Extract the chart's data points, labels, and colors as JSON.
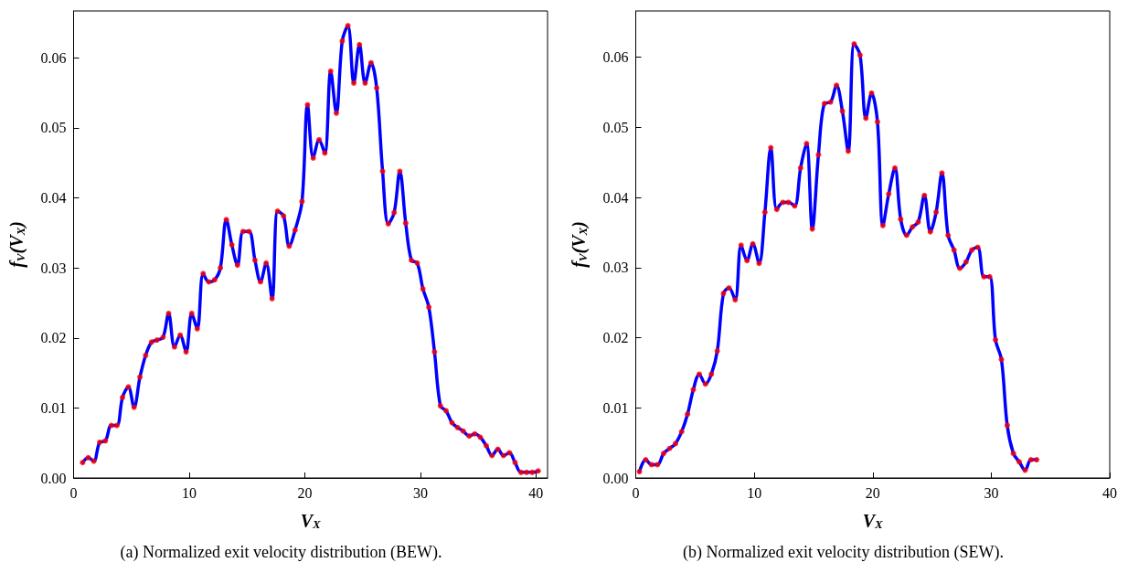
{
  "chart_data": [
    {
      "type": "line",
      "xlabel": "V$_{X}$",
      "ylabel": "f$_{V}$(V$_{X}$)",
      "annotations": [
        "(a) Normalized exit velocity distribution (BEW)."
      ],
      "xlim": [
        0,
        41
      ],
      "xticks": [
        0,
        10,
        20,
        30,
        40
      ],
      "ylim": [
        0,
        0.0667
      ],
      "yticks": [
        {
          "value": 0,
          "label": "0.00"
        },
        0.01,
        0.02,
        0.03,
        0.04,
        0.05,
        0.06
      ],
      "grid": false,
      "x": [
        0.78,
        1.27,
        1.75,
        2.26,
        2.75,
        3.26,
        3.75,
        4.23,
        4.74,
        5.23,
        5.74,
        6.23,
        6.74,
        7.22,
        7.74,
        8.22,
        8.73,
        9.22,
        9.73,
        10.22,
        10.7,
        11.21,
        11.7,
        12.21,
        12.7,
        13.21,
        13.69,
        14.18,
        14.66,
        15.18,
        15.69,
        16.17,
        16.66,
        17.17,
        17.65,
        18.17,
        18.65,
        19.16,
        19.76,
        20.24,
        20.73,
        21.24,
        21.73,
        22.24,
        22.73,
        23.24,
        23.73,
        24.24,
        24.73,
        25.22,
        25.73,
        26.22,
        26.73,
        27.22,
        27.73,
        28.22,
        28.73,
        29.22,
        29.73,
        30.22,
        30.73,
        31.22,
        31.73,
        32.22,
        32.73,
        33.22,
        33.7,
        34.22,
        34.7,
        35.19,
        35.7,
        36.19,
        36.7,
        37.19,
        37.7,
        38.19,
        38.7,
        39.19,
        39.68,
        40.19
      ],
      "series": [
        {
          "type": "line",
          "color": "#0000ff",
          "marker": "none",
          "values": [
            0.0022,
            0.0029,
            0.0024,
            0.0051,
            0.0053,
            0.0075,
            0.0075,
            0.0115,
            0.013,
            0.0101,
            0.0144,
            0.0175,
            0.0194,
            0.0197,
            0.0201,
            0.0235,
            0.0187,
            0.0204,
            0.018,
            0.0235,
            0.0213,
            0.0292,
            0.028,
            0.0283,
            0.03,
            0.0369,
            0.0333,
            0.0304,
            0.0352,
            0.0352,
            0.0311,
            0.028,
            0.0307,
            0.0256,
            0.0381,
            0.0374,
            0.0331,
            0.0354,
            0.0395,
            0.0533,
            0.0457,
            0.0483,
            0.0464,
            0.0581,
            0.0521,
            0.0624,
            0.0646,
            0.0564,
            0.0619,
            0.0564,
            0.0593,
            0.0557,
            0.0438,
            0.0363,
            0.0379,
            0.0438,
            0.0364,
            0.0311,
            0.0307,
            0.027,
            0.0244,
            0.018,
            0.0103,
            0.0096,
            0.0079,
            0.0072,
            0.0067,
            0.006,
            0.0063,
            0.0058,
            0.0046,
            0.0032,
            0.0041,
            0.0032,
            0.0036,
            0.0022,
            0.0008,
            0.0008,
            0.0008,
            0.001
          ]
        },
        {
          "type": "scatter",
          "color": "#ff0000",
          "marker": "circle",
          "values": [
            0.0022,
            0.0029,
            0.0024,
            0.0051,
            0.0053,
            0.0075,
            0.0075,
            0.0115,
            0.013,
            0.0101,
            0.0144,
            0.0175,
            0.0194,
            0.0197,
            0.0201,
            0.0235,
            0.0187,
            0.0204,
            0.018,
            0.0235,
            0.0213,
            0.0292,
            0.028,
            0.0283,
            0.03,
            0.0369,
            0.0333,
            0.0304,
            0.0352,
            0.0352,
            0.0311,
            0.028,
            0.0307,
            0.0256,
            0.0381,
            0.0374,
            0.0331,
            0.0354,
            0.0395,
            0.0533,
            0.0457,
            0.0483,
            0.0464,
            0.0581,
            0.0521,
            0.0624,
            0.0646,
            0.0564,
            0.0619,
            0.0564,
            0.0593,
            0.0557,
            0.0438,
            0.0363,
            0.0379,
            0.0438,
            0.0364,
            0.0311,
            0.0307,
            0.027,
            0.0244,
            0.018,
            0.0103,
            0.0096,
            0.0079,
            0.0072,
            0.0067,
            0.006,
            0.0063,
            0.0058,
            0.0046,
            0.0032,
            0.0041,
            0.0032,
            0.0036,
            0.0022,
            0.0008,
            0.0008,
            0.0008,
            0.001
          ]
        }
      ]
    },
    {
      "type": "line",
      "xlabel": "V$_{X}$",
      "ylabel": "f$_{V}$(V$_{X}$)",
      "annotations": [
        "(b) Normalized exit velocity distribution (SEW)."
      ],
      "xlim": [
        0,
        40
      ],
      "xticks": [
        0,
        10,
        20,
        30,
        40
      ],
      "ylim": [
        0,
        0.0666
      ],
      "yticks": [
        {
          "value": 0,
          "label": "0.00"
        },
        0.01,
        0.02,
        0.03,
        0.04,
        0.05,
        0.06
      ],
      "grid": false,
      "x": [
        0.31,
        0.84,
        1.33,
        1.83,
        2.35,
        2.85,
        3.35,
        3.87,
        4.37,
        4.86,
        5.36,
        5.88,
        6.38,
        6.88,
        7.4,
        7.87,
        8.39,
        8.89,
        9.39,
        9.88,
        10.41,
        10.9,
        11.4,
        11.9,
        12.42,
        12.89,
        13.41,
        13.91,
        14.41,
        14.9,
        15.42,
        15.92,
        16.44,
        16.94,
        17.44,
        17.93,
        18.43,
        18.93,
        19.42,
        19.9,
        20.4,
        20.86,
        21.35,
        21.87,
        22.36,
        22.86,
        23.35,
        23.84,
        24.36,
        24.86,
        25.35,
        25.84,
        26.36,
        26.86,
        27.35,
        27.87,
        28.36,
        28.86,
        29.38,
        29.87,
        30.36,
        30.86,
        31.35,
        31.87,
        32.36,
        32.86,
        33.35,
        33.84
      ],
      "series": [
        {
          "type": "line",
          "color": "#0000ff",
          "marker": "none",
          "values": [
            0.0009,
            0.0026,
            0.0019,
            0.0019,
            0.0035,
            0.0042,
            0.0049,
            0.0066,
            0.0091,
            0.0126,
            0.0148,
            0.0134,
            0.0148,
            0.0181,
            0.0263,
            0.0271,
            0.0254,
            0.0332,
            0.031,
            0.0334,
            0.0306,
            0.0379,
            0.0471,
            0.0383,
            0.0393,
            0.0393,
            0.0388,
            0.0442,
            0.0477,
            0.0355,
            0.0461,
            0.0534,
            0.0536,
            0.056,
            0.0523,
            0.0466,
            0.0619,
            0.0603,
            0.0513,
            0.0549,
            0.0508,
            0.036,
            0.0405,
            0.0442,
            0.0369,
            0.0346,
            0.0358,
            0.0365,
            0.0403,
            0.0351,
            0.0379,
            0.0435,
            0.0346,
            0.0325,
            0.0299,
            0.0308,
            0.0325,
            0.0329,
            0.0287,
            0.0287,
            0.0197,
            0.0169,
            0.0075,
            0.0035,
            0.0023,
            0.0011,
            0.0026,
            0.0026
          ]
        },
        {
          "type": "scatter",
          "color": "#ff0000",
          "marker": "circle",
          "values": [
            0.0009,
            0.0026,
            0.0019,
            0.0019,
            0.0035,
            0.0042,
            0.0049,
            0.0066,
            0.0091,
            0.0126,
            0.0148,
            0.0134,
            0.0148,
            0.0181,
            0.0263,
            0.0271,
            0.0254,
            0.0332,
            0.031,
            0.0334,
            0.0306,
            0.0379,
            0.0471,
            0.0383,
            0.0393,
            0.0393,
            0.0388,
            0.0442,
            0.0477,
            0.0355,
            0.0461,
            0.0534,
            0.0536,
            0.056,
            0.0523,
            0.0466,
            0.0619,
            0.0603,
            0.0513,
            0.0549,
            0.0508,
            0.036,
            0.0405,
            0.0442,
            0.0369,
            0.0346,
            0.0358,
            0.0365,
            0.0403,
            0.0351,
            0.0379,
            0.0435,
            0.0346,
            0.0325,
            0.0299,
            0.0308,
            0.0325,
            0.0329,
            0.0287,
            0.0287,
            0.0197,
            0.0169,
            0.0075,
            0.0035,
            0.0023,
            0.0011,
            0.0026,
            0.0026
          ]
        }
      ]
    }
  ]
}
